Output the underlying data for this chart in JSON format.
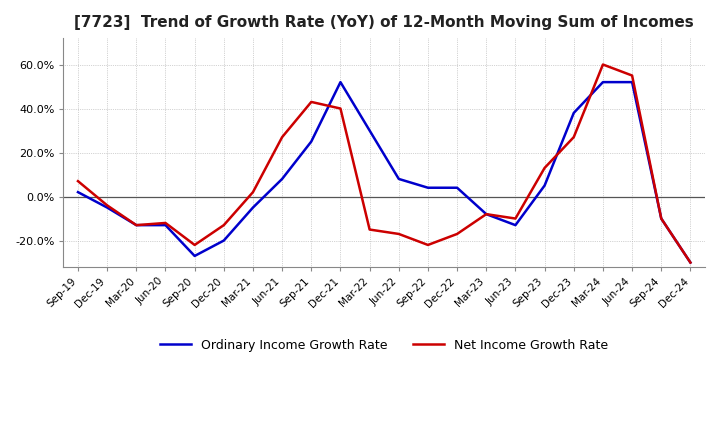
{
  "title": "[7723]  Trend of Growth Rate (YoY) of 12-Month Moving Sum of Incomes",
  "title_fontsize": 11,
  "ylim": [
    -0.32,
    0.72
  ],
  "yticks": [
    -0.2,
    0.0,
    0.2,
    0.4,
    0.6
  ],
  "background_color": "#ffffff",
  "grid_color": "#aaaaaa",
  "ordinary_color": "#0000cc",
  "net_color": "#cc0000",
  "legend_labels": [
    "Ordinary Income Growth Rate",
    "Net Income Growth Rate"
  ],
  "x_labels": [
    "Sep-19",
    "Dec-19",
    "Mar-20",
    "Jun-20",
    "Sep-20",
    "Dec-20",
    "Mar-21",
    "Jun-21",
    "Sep-21",
    "Dec-21",
    "Mar-22",
    "Jun-22",
    "Sep-22",
    "Dec-22",
    "Mar-23",
    "Jun-23",
    "Sep-23",
    "Dec-23",
    "Mar-24",
    "Jun-24",
    "Sep-24",
    "Dec-24"
  ],
  "ordinary": [
    0.02,
    -0.05,
    -0.13,
    -0.13,
    -0.27,
    -0.2,
    -0.05,
    0.08,
    0.25,
    0.52,
    0.3,
    0.08,
    0.04,
    0.04,
    -0.08,
    -0.13,
    0.05,
    0.38,
    0.52,
    0.52,
    -0.1,
    -0.3
  ],
  "net": [
    0.07,
    -0.04,
    -0.13,
    -0.12,
    -0.22,
    -0.13,
    0.02,
    0.27,
    0.43,
    0.4,
    -0.15,
    -0.17,
    -0.22,
    -0.17,
    -0.08,
    -0.1,
    0.13,
    0.27,
    0.6,
    0.55,
    -0.1,
    -0.3
  ]
}
